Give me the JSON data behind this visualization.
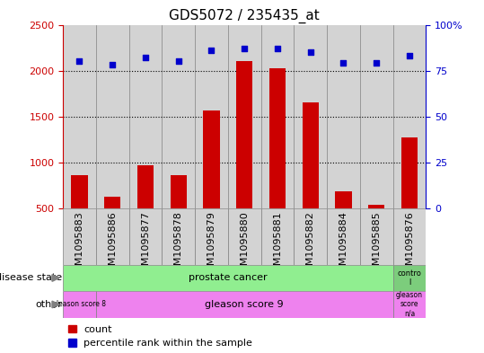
{
  "title": "GDS5072 / 235435_at",
  "samples": [
    "GSM1095883",
    "GSM1095886",
    "GSM1095877",
    "GSM1095878",
    "GSM1095879",
    "GSM1095880",
    "GSM1095881",
    "GSM1095882",
    "GSM1095884",
    "GSM1095885",
    "GSM1095876"
  ],
  "counts": [
    860,
    630,
    970,
    860,
    1570,
    2100,
    2030,
    1650,
    680,
    540,
    1270
  ],
  "percentile_ranks": [
    80,
    78,
    82,
    80,
    86,
    87,
    87,
    85,
    79,
    79,
    83
  ],
  "ylim_left": [
    500,
    2500
  ],
  "ylim_right": [
    0,
    100
  ],
  "yticks_left": [
    500,
    1000,
    1500,
    2000,
    2500
  ],
  "yticks_right": [
    0,
    25,
    50,
    75,
    100
  ],
  "bar_color": "#cc0000",
  "dot_color": "#0000cc",
  "bar_width": 0.5,
  "col_bg_color": "#d3d3d3",
  "plot_bg_color": "#ffffff",
  "disease_state_colors": [
    "#90EE90",
    "#7CCD7C"
  ],
  "other_color": "#EE82EE",
  "title_fontsize": 11,
  "tick_fontsize": 8,
  "annot_fontsize": 8,
  "legend_fontsize": 8
}
